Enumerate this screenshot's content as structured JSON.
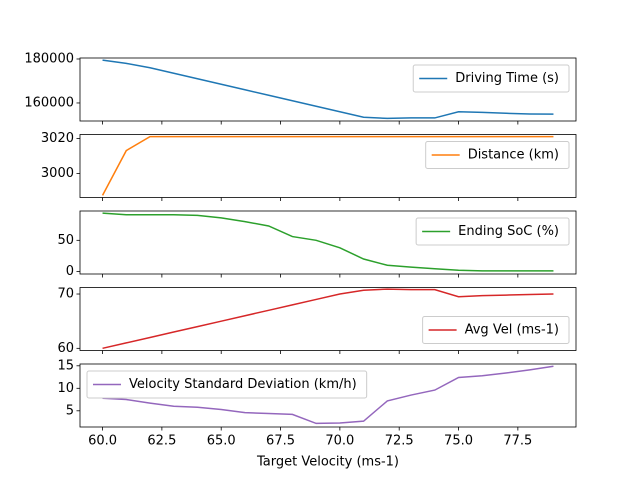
{
  "chart_data": [
    {
      "type": "line",
      "x": [
        60,
        61,
        62,
        63,
        64,
        65,
        66,
        67,
        68,
        69,
        70,
        71,
        72,
        73,
        74,
        75,
        76,
        77,
        78,
        79
      ],
      "series": [
        {
          "name": "Driving Time (s)",
          "color": "#1f77b4",
          "values": [
            179500,
            178000,
            176000,
            173500,
            171000,
            168500,
            166000,
            163500,
            161000,
            158500,
            156000,
            153500,
            153000,
            153200,
            153200,
            156000,
            155700,
            155300,
            155000,
            154900
          ]
        }
      ],
      "xlim": [
        59.05,
        79.95
      ],
      "ylim": [
        151800,
        180450
      ],
      "yticks": [
        160000,
        180000
      ],
      "legend": "upper right"
    },
    {
      "type": "line",
      "x": [
        60,
        61,
        62,
        63,
        64,
        65,
        66,
        67,
        68,
        69,
        70,
        71,
        72,
        73,
        74,
        75,
        76,
        77,
        78,
        79
      ],
      "series": [
        {
          "name": "Distance (km)",
          "color": "#ff7f0e",
          "values": [
            2987.5,
            3013.1,
            3021.1,
            3021.1,
            3021.1,
            3021.1,
            3021.1,
            3021.1,
            3021.1,
            3021.1,
            3021.1,
            3021.1,
            3021.1,
            3021.1,
            3021.1,
            3021.1,
            3021.1,
            3021.1,
            3021.1,
            3021.1
          ]
        }
      ],
      "xlim": [
        59.05,
        79.95
      ],
      "ylim": [
        2986.3,
        3022.3
      ],
      "yticks": [
        3000,
        3020
      ],
      "legend": "upper right"
    },
    {
      "type": "line",
      "x": [
        60,
        61,
        62,
        63,
        64,
        65,
        66,
        67,
        68,
        69,
        70,
        71,
        72,
        73,
        74,
        75,
        76,
        77,
        78,
        79
      ],
      "series": [
        {
          "name": "Ending SoC (%)",
          "color": "#2ca02c",
          "values": [
            93.5,
            91,
            91,
            91,
            90,
            86,
            80,
            73,
            56,
            50,
            38,
            20,
            10,
            7,
            4.5,
            2,
            1,
            1,
            1,
            1
          ]
        }
      ],
      "xlim": [
        59.05,
        79.95
      ],
      "ylim": [
        -4,
        97
      ],
      "yticks": [
        0,
        50
      ],
      "legend": "upper right"
    },
    {
      "type": "line",
      "x": [
        60,
        61,
        62,
        63,
        64,
        65,
        66,
        67,
        68,
        69,
        70,
        71,
        72,
        73,
        74,
        75,
        76,
        77,
        78,
        79
      ],
      "series": [
        {
          "name": "Avg Vel (ms-1)",
          "color": "#d62728",
          "values": [
            60,
            61,
            62,
            63,
            64,
            65,
            66,
            67,
            68,
            69,
            70,
            70.7,
            70.9,
            70.8,
            70.8,
            69.5,
            69.7,
            69.8,
            69.9,
            70
          ]
        }
      ],
      "xlim": [
        59.05,
        79.95
      ],
      "ylim": [
        59.6,
        71.2
      ],
      "yticks": [
        60,
        70
      ],
      "legend": "lower right"
    },
    {
      "type": "line",
      "x": [
        60,
        61,
        62,
        63,
        64,
        65,
        66,
        67,
        68,
        69,
        70,
        71,
        72,
        73,
        74,
        75,
        76,
        77,
        78,
        79
      ],
      "series": [
        {
          "name": "Velocity Standard Deviation (km/h)",
          "color": "#9467bd",
          "values": [
            7.8,
            7.5,
            6.7,
            6.0,
            5.8,
            5.3,
            4.6,
            4.4,
            4.2,
            2.2,
            2.3,
            2.7,
            7.2,
            8.5,
            9.6,
            12.4,
            12.8,
            13.4,
            14.1,
            14.9
          ]
        }
      ],
      "xlim": [
        59.05,
        79.95
      ],
      "ylim": [
        1.4,
        15.4
      ],
      "yticks": [
        5,
        10,
        15
      ],
      "legend": "upper left",
      "xlabel": "Target Velocity (ms-1)",
      "xticks": [
        {
          "value": 60,
          "label": "60.0"
        },
        {
          "value": 62.5,
          "label": "62.5"
        },
        {
          "value": 65,
          "label": "65.0"
        },
        {
          "value": 67.5,
          "label": "67.5"
        },
        {
          "value": 70,
          "label": "70.0"
        },
        {
          "value": 72.5,
          "label": "72.5"
        },
        {
          "value": 75,
          "label": "75.0"
        },
        {
          "value": 77.5,
          "label": "77.5"
        }
      ]
    }
  ]
}
